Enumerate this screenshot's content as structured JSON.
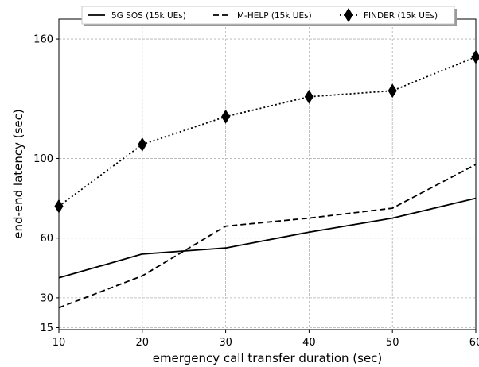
{
  "chart_data": {
    "type": "line",
    "title": "",
    "xlabel": "emergency call transfer duration (sec)",
    "ylabel": "end-end latency (sec)",
    "x": [
      10,
      20,
      30,
      40,
      50,
      60
    ],
    "xlim": [
      10,
      60
    ],
    "ylim": [
      14,
      170
    ],
    "xticks": [
      10,
      20,
      30,
      40,
      50,
      60
    ],
    "yticks": [
      15,
      30,
      60,
      100,
      160
    ],
    "grid": true,
    "legend_position": "top",
    "series": [
      {
        "name": "5G SOS (15k UEs)",
        "style": "solid",
        "marker": "none",
        "color": "#000000",
        "values": [
          40,
          52,
          55,
          63,
          70,
          80
        ]
      },
      {
        "name": "M-HELP (15k UEs)",
        "style": "dashed",
        "marker": "none",
        "color": "#000000",
        "values": [
          25,
          41,
          66,
          70,
          75,
          97
        ]
      },
      {
        "name": "FINDER (15k UEs)",
        "style": "dotted",
        "marker": "thin-diamond",
        "color": "#000000",
        "values": [
          76,
          107,
          121,
          131,
          134,
          151
        ]
      }
    ]
  }
}
